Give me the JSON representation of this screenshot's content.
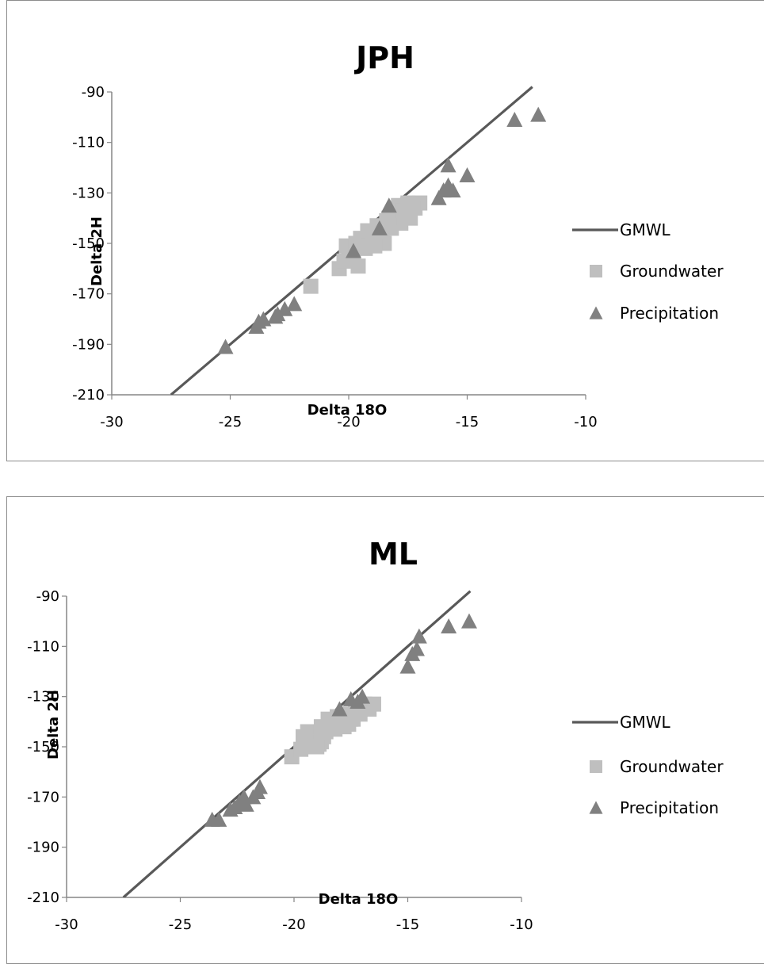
{
  "chart_data": [
    {
      "type": "scatter",
      "title": "JPH",
      "xlabel": "Delta 18O",
      "ylabel": "Delta 2H",
      "xlim": [
        -30,
        -10
      ],
      "ylim": [
        -210,
        -90
      ],
      "xticks": [
        "-30",
        "-25",
        "-20",
        "-15",
        "-10"
      ],
      "yticks": [
        "-90",
        "-110",
        "-130",
        "-150",
        "-170",
        "-190",
        "-210"
      ],
      "grid": false,
      "legend_position": "right",
      "series": [
        {
          "name": "GMWL",
          "kind": "line",
          "color": "#595959",
          "x": [
            -27.5,
            -12.25
          ],
          "y": [
            -210,
            -88
          ]
        },
        {
          "name": "Groundwater",
          "kind": "square",
          "color": "#bfbfbf",
          "x": [
            -21.6,
            -20.4,
            -20.2,
            -20.0,
            -19.8,
            -19.6,
            -20.1,
            -19.9,
            -19.7,
            -19.5,
            -19.3,
            -19.1,
            -18.9,
            -18.7,
            -18.5,
            -19.2,
            -19.0,
            -18.8,
            -18.6,
            -18.4,
            -18.2,
            -18.0,
            -17.8,
            -17.6,
            -17.4,
            -17.2,
            -17.0,
            -18.3,
            -18.1,
            -17.9,
            -17.7,
            -17.5,
            -17.3,
            -18.6,
            -18.9
          ],
          "y": [
            -167,
            -160,
            -157,
            -155,
            -157,
            -159,
            -151,
            -153,
            -150,
            -148,
            -152,
            -149,
            -146,
            -148,
            -150,
            -145,
            -147,
            -143,
            -145,
            -141,
            -144,
            -140,
            -142,
            -138,
            -140,
            -136,
            -134,
            -140,
            -137,
            -135,
            -137,
            -134,
            -136,
            -149,
            -151
          ]
        },
        {
          "name": "Precipitation",
          "kind": "triangle",
          "color": "#808080",
          "x": [
            -25.2,
            -23.9,
            -23.6,
            -23.0,
            -22.7,
            -22.3,
            -23.8,
            -23.1,
            -19.8,
            -18.7,
            -18.3,
            -16.2,
            -16.0,
            -15.8,
            -15.6,
            -15.0,
            -15.8,
            -13.0,
            -12.0
          ],
          "y": [
            -191,
            -183,
            -180,
            -178,
            -176,
            -174,
            -181,
            -179,
            -153,
            -144,
            -135,
            -132,
            -129,
            -127,
            -129,
            -123,
            -119,
            -101,
            -99
          ]
        }
      ]
    },
    {
      "type": "scatter",
      "title": "ML",
      "xlabel": "Delta 18O",
      "ylabel": "Delta 2H",
      "xlim": [
        -30,
        -10
      ],
      "ylim": [
        -210,
        -90
      ],
      "xticks": [
        "-30",
        "-25",
        "-20",
        "-15",
        "-10"
      ],
      "yticks": [
        "-90",
        "-110",
        "-130",
        "-150",
        "-170",
        "-190",
        "-210"
      ],
      "grid": false,
      "legend_position": "right",
      "series": [
        {
          "name": "GMWL",
          "kind": "line",
          "color": "#595959",
          "x": [
            -27.5,
            -12.25
          ],
          "y": [
            -210,
            -88
          ]
        },
        {
          "name": "Groundwater",
          "kind": "square",
          "color": "#bfbfbf",
          "x": [
            -20.1,
            -19.7,
            -19.5,
            -19.3,
            -19.1,
            -18.9,
            -18.7,
            -19.6,
            -19.4,
            -19.2,
            -19.0,
            -18.8,
            -18.6,
            -18.4,
            -18.2,
            -18.0,
            -17.8,
            -18.5,
            -18.3,
            -18.1,
            -17.9,
            -17.7,
            -17.5,
            -17.3,
            -17.1,
            -16.9,
            -16.7,
            -16.5,
            -17.6,
            -17.4,
            -18.8,
            -19.0
          ],
          "y": [
            -154,
            -151,
            -148,
            -150,
            -147,
            -149,
            -146,
            -146,
            -144,
            -147,
            -145,
            -142,
            -144,
            -141,
            -143,
            -140,
            -142,
            -139,
            -141,
            -138,
            -140,
            -137,
            -139,
            -135,
            -137,
            -133,
            -135,
            -133,
            -141,
            -139,
            -148,
            -150
          ]
        },
        {
          "name": "Precipitation",
          "kind": "triangle",
          "color": "#808080",
          "x": [
            -23.6,
            -23.3,
            -22.8,
            -22.4,
            -22.1,
            -21.8,
            -21.6,
            -22.6,
            -22.2,
            -21.5,
            -18.0,
            -17.5,
            -17.2,
            -17.0,
            -15.0,
            -14.8,
            -14.6,
            -14.5,
            -13.2,
            -12.3
          ],
          "y": [
            -179,
            -179,
            -175,
            -172,
            -173,
            -170,
            -168,
            -174,
            -170,
            -166,
            -135,
            -131,
            -132,
            -130,
            -118,
            -113,
            -111,
            -106,
            -102,
            -100
          ]
        }
      ]
    }
  ]
}
